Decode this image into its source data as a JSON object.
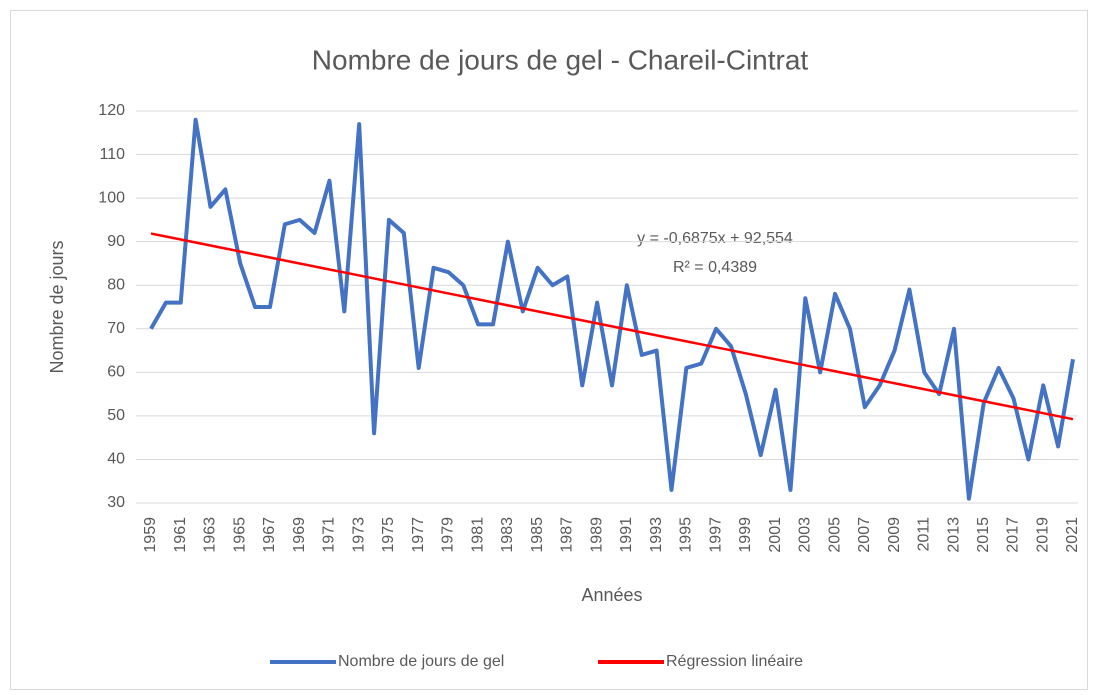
{
  "chart_data": {
    "type": "line",
    "title": "Nombre de jours de gel - Chareil-Cintrat",
    "xlabel": "Années",
    "ylabel": "Nombre de jours",
    "annotations": [
      "y = -0,6875x + 92,554",
      "R² = 0,4389"
    ],
    "categories": [
      "1959",
      null,
      "1961",
      null,
      "1963",
      null,
      "1965",
      null,
      "1967",
      null,
      "1969",
      null,
      "1971",
      null,
      "1973",
      null,
      "1975",
      null,
      "1977",
      null,
      "1979",
      null,
      "1981",
      null,
      "1983",
      null,
      "1985",
      null,
      "1987",
      null,
      "1989",
      null,
      "1991",
      null,
      "1993",
      null,
      "1995",
      null,
      "1997",
      null,
      "1999",
      null,
      "2001",
      null,
      "2003",
      null,
      "2005",
      null,
      "2007",
      null,
      "2009",
      null,
      "2011",
      null,
      "2013",
      null,
      "2015",
      null,
      "2017",
      null,
      "2019",
      null,
      "2021"
    ],
    "series": [
      {
        "name": "Nombre de jours de gel",
        "color": "#4472c4",
        "values": [
          70,
          76,
          76,
          118,
          98,
          102,
          85,
          75,
          75,
          94,
          95,
          92,
          104,
          74,
          117,
          46,
          95,
          92,
          61,
          84,
          83,
          80,
          71,
          71,
          90,
          74,
          84,
          80,
          82,
          57,
          76,
          57,
          80,
          64,
          65,
          33,
          61,
          62,
          70,
          66,
          55,
          41,
          56,
          33,
          77,
          60,
          78,
          70,
          52,
          57,
          65,
          79,
          60,
          55,
          70,
          31,
          53,
          61,
          54,
          40,
          57,
          43,
          63
        ]
      },
      {
        "name": "Régression linéaire",
        "color": "#ff0000",
        "values": [
          91.8665,
          91.179,
          90.4915,
          89.804,
          89.1165,
          88.429,
          87.7415,
          87.054,
          86.3665,
          85.679,
          84.9915,
          84.304,
          83.6165,
          82.929,
          82.2415,
          81.554,
          80.8665,
          80.179,
          79.4915,
          78.804,
          78.1165,
          77.429,
          76.7415,
          76.054,
          75.3665,
          74.679,
          73.9915,
          73.304,
          72.6165,
          71.929,
          71.2415,
          70.554,
          69.8665,
          69.179,
          68.4915,
          67.804,
          67.1165,
          66.429,
          65.7415,
          65.054,
          64.3665,
          63.679,
          62.9915,
          62.304,
          61.6165,
          60.929,
          60.2415,
          59.554,
          58.8665,
          58.179,
          57.4915,
          56.804,
          56.1165,
          55.429,
          54.7415,
          54.054,
          53.3665,
          52.679,
          51.9915,
          51.304,
          50.6165,
          49.929,
          49.2415
        ]
      }
    ],
    "ylim": [
      30,
      120
    ],
    "yticks": [
      30,
      40,
      50,
      60,
      70,
      80,
      90,
      100,
      110,
      120
    ],
    "grid": true,
    "legend": "bottom"
  }
}
